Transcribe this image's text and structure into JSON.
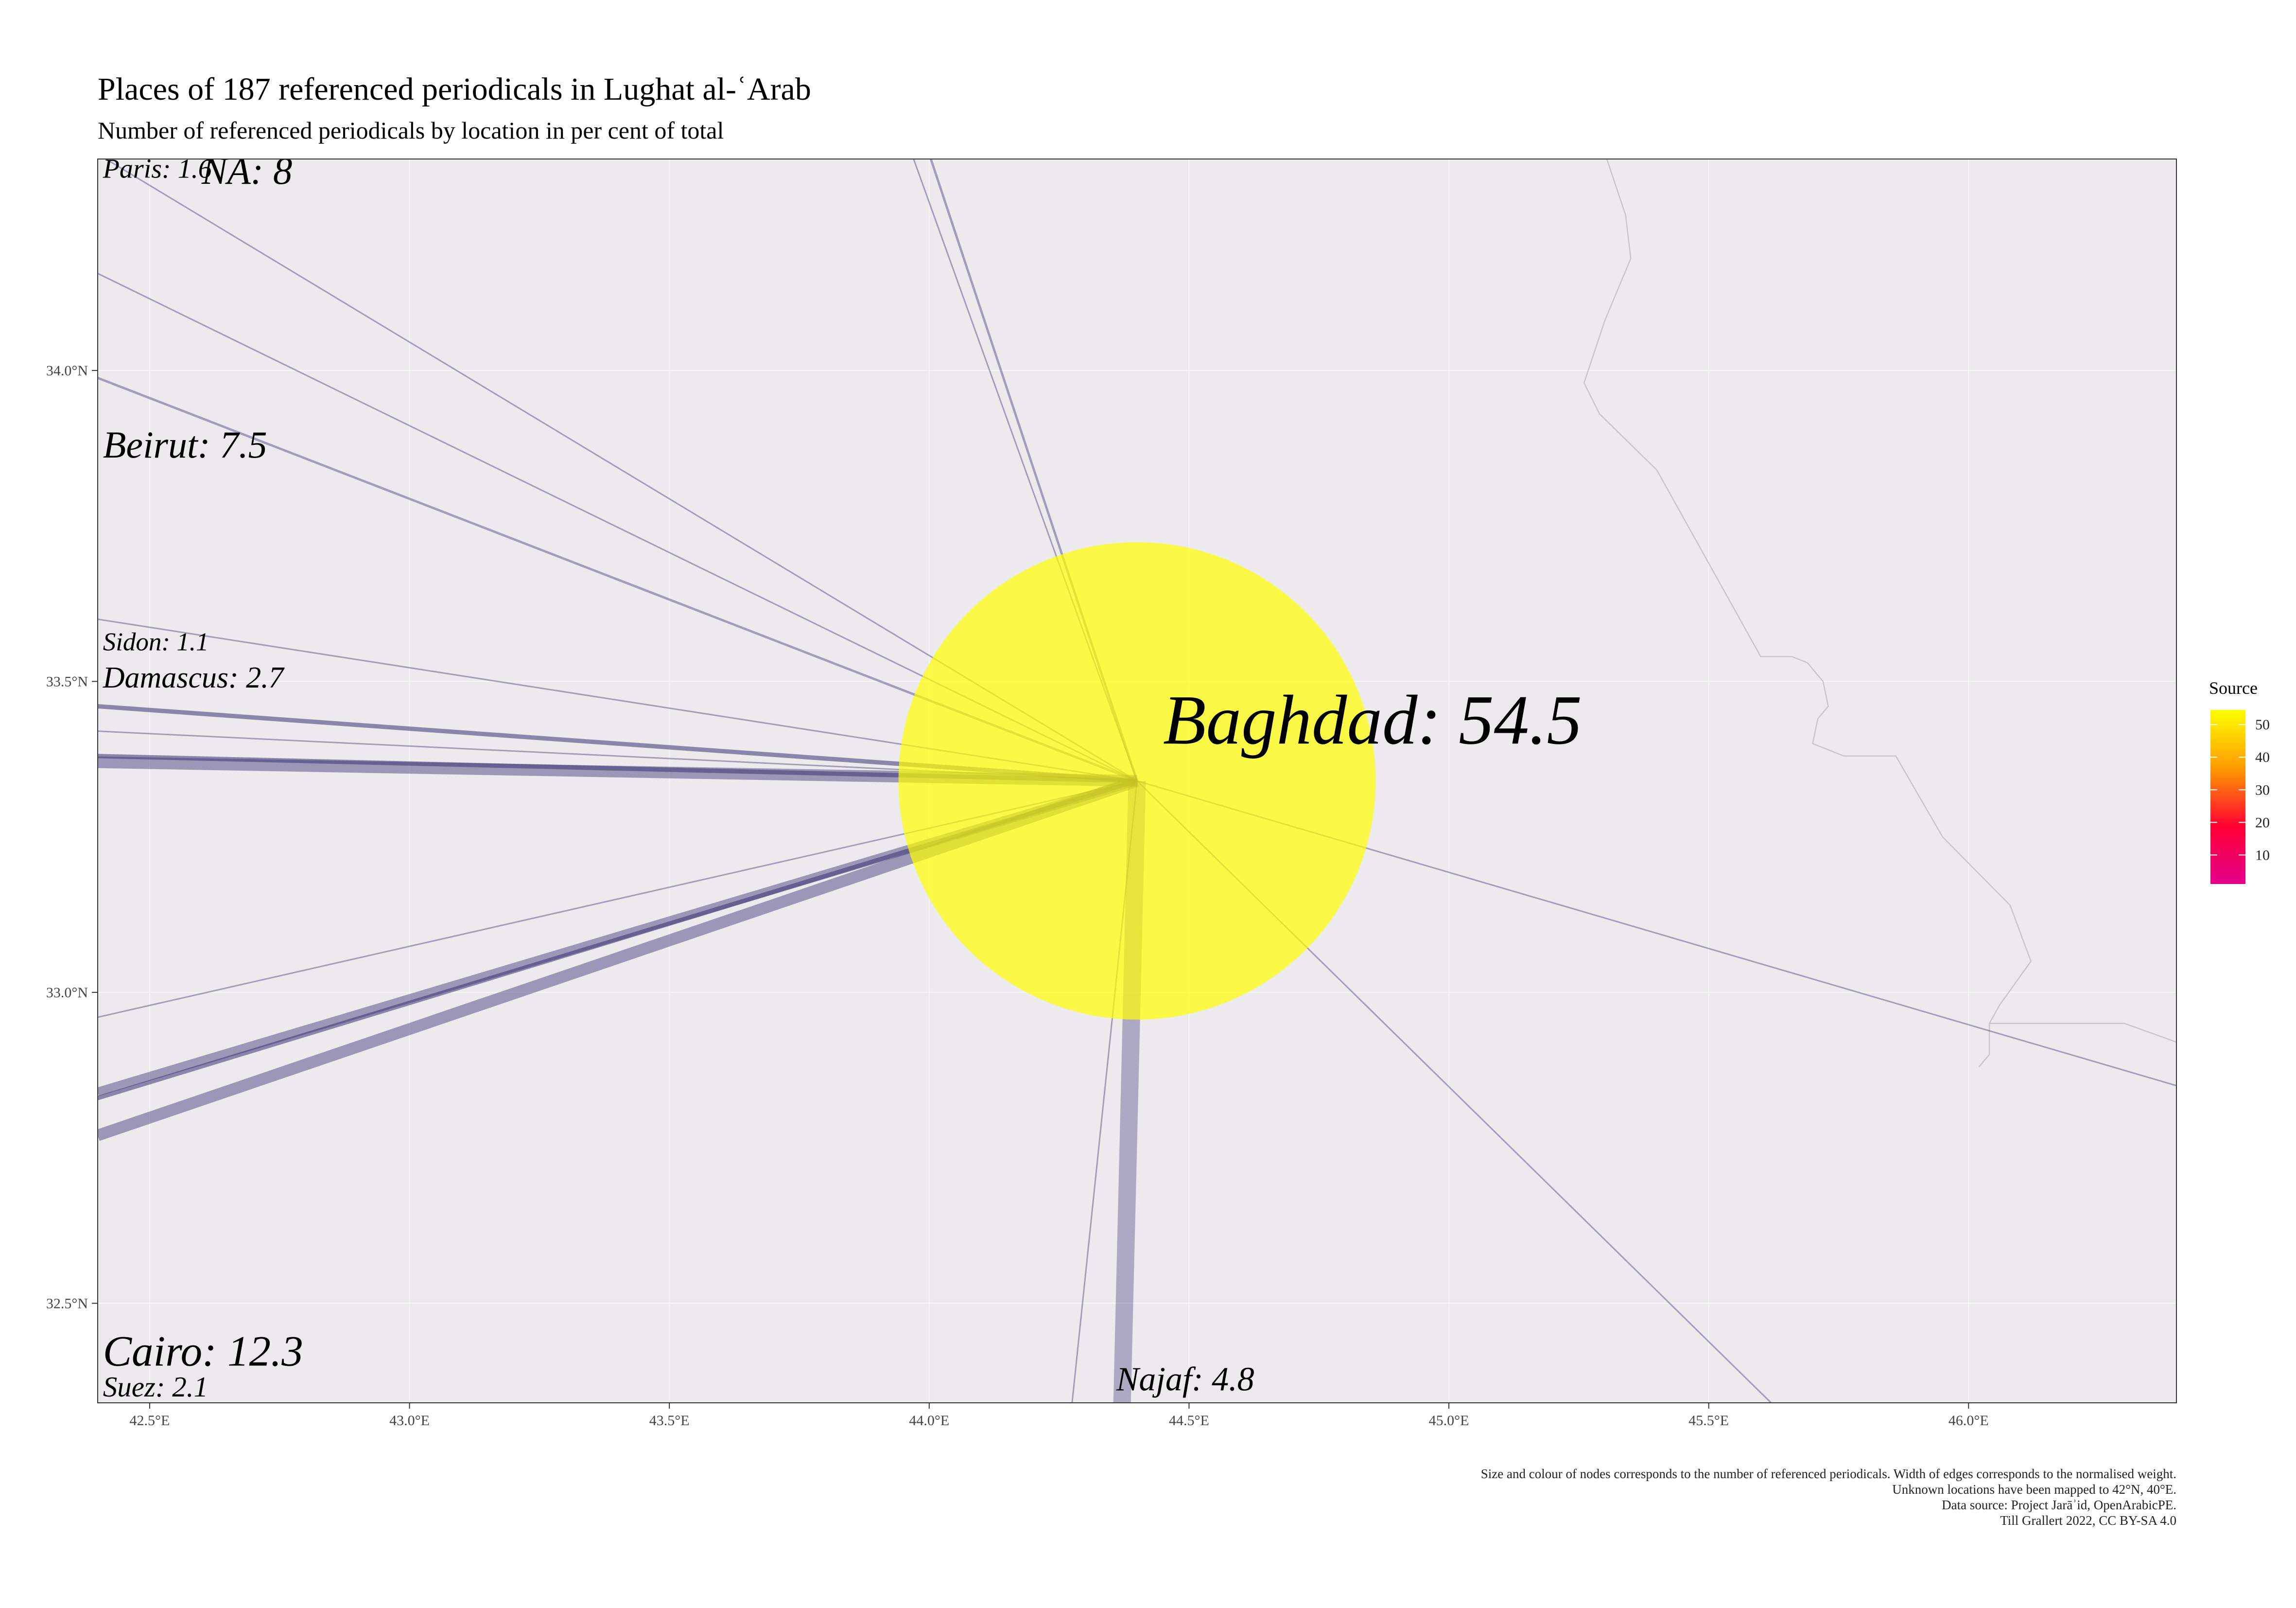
{
  "title": "Places of 187 referenced periodicals in Lughat al-ʿArab",
  "subtitle": "Number of referenced periodicals by location in per cent of total",
  "caption": [
    "Size and colour of nodes corresponds to the number of referenced periodicals. Width of edges corresponds to the normalised weight.",
    "Unknown locations have been mapped to 42°N, 40°E.",
    "Data source: Project Jarāʾid, OpenArabicPE.",
    "Till Grallert 2022, CC BY-SA 4.0"
  ],
  "colors": {
    "panel_bg": "#ECEAEC",
    "grid": "#F6F5F6",
    "edge": "#3B3275",
    "node_max": "#FFFF00",
    "legend_gradient": [
      "#FFFF00",
      "#FF9900",
      "#FF0033",
      "#E3008C"
    ],
    "border": "#C9C6C9"
  },
  "map": {
    "xlim": [
      42.4,
      46.4
    ],
    "ylim": [
      32.34,
      34.34
    ],
    "x_ticks": [
      {
        "value": 42.5,
        "label": "42.5°E"
      },
      {
        "value": 43.0,
        "label": "43.0°E"
      },
      {
        "value": 43.5,
        "label": "43.5°E"
      },
      {
        "value": 44.0,
        "label": "44.0°E"
      },
      {
        "value": 44.5,
        "label": "44.5°E"
      },
      {
        "value": 45.0,
        "label": "45.0°E"
      },
      {
        "value": 45.5,
        "label": "45.5°E"
      },
      {
        "value": 46.0,
        "label": "46.0°E"
      }
    ],
    "y_ticks": [
      {
        "value": 32.5,
        "label": "32.5°N"
      },
      {
        "value": 33.0,
        "label": "33.0°N"
      },
      {
        "value": 33.5,
        "label": "33.5°N"
      },
      {
        "value": 34.0,
        "label": "34.0°N"
      }
    ],
    "hub": {
      "name": "Baghdad",
      "label": "Baghdad: 54.5",
      "lon": 44.4,
      "lat": 33.34,
      "value": 54.5
    },
    "place_labels": [
      {
        "label": "Baghdad: 54.5",
        "lon": 44.45,
        "lat": 33.4,
        "value": 54.5
      },
      {
        "label": "NA: 8",
        "lon": 42.6,
        "lat": 34.3,
        "value": 8
      },
      {
        "label": "Paris: 1.6",
        "lon": 42.41,
        "lat": 34.31,
        "value": 1.6
      },
      {
        "label": "Beirut: 7.5",
        "lon": 42.41,
        "lat": 33.86,
        "value": 7.5
      },
      {
        "label": "Sidon: 1.1",
        "lon": 42.41,
        "lat": 33.55,
        "value": 1.1
      },
      {
        "label": "Damascus: 2.7",
        "lon": 42.41,
        "lat": 33.49,
        "value": 2.7
      },
      {
        "label": "Cairo: 12.3",
        "lon": 42.41,
        "lat": 32.4,
        "value": 12.3
      },
      {
        "label": "Suez: 2.1",
        "lon": 42.41,
        "lat": 32.35,
        "value": 2.1
      },
      {
        "label": "Najaf: 4.8",
        "lon": 44.36,
        "lat": 32.36,
        "value": 4.8
      }
    ],
    "edges": [
      {
        "to_lon": 41.9,
        "to_lat": 34.6,
        "weight": 1
      },
      {
        "to_lon": 41.9,
        "to_lat": 34.36,
        "weight": 1
      },
      {
        "to_lon": 41.9,
        "to_lat": 34.15,
        "weight": 1.6
      },
      {
        "to_lon": 42.4,
        "to_lat": 33.6,
        "weight": 1
      },
      {
        "to_lon": 42.4,
        "to_lat": 33.46,
        "weight": 3
      },
      {
        "to_lon": 42.4,
        "to_lat": 33.42,
        "weight": 1
      },
      {
        "to_lon": 42.4,
        "to_lat": 33.38,
        "weight": 3
      },
      {
        "to_lon": 42.4,
        "to_lat": 33.37,
        "weight": 8
      },
      {
        "to_lon": 42.4,
        "to_lat": 32.96,
        "weight": 1
      },
      {
        "to_lon": 42.4,
        "to_lat": 32.84,
        "weight": 6
      },
      {
        "to_lon": 42.4,
        "to_lat": 32.83,
        "weight": 3
      },
      {
        "to_lon": 42.4,
        "to_lat": 32.77,
        "weight": 8
      },
      {
        "to_lon": 43.9,
        "to_lat": 34.6,
        "weight": 1.6
      },
      {
        "to_lon": 43.97,
        "to_lat": 34.34,
        "weight": 1
      },
      {
        "to_lon": 44.27,
        "to_lat": 32.3,
        "weight": 1
      },
      {
        "to_lon": 44.37,
        "to_lat": 32.3,
        "weight": 12
      },
      {
        "to_lon": 45.62,
        "to_lat": 32.34,
        "weight": 1
      },
      {
        "to_lon": 46.4,
        "to_lat": 32.85,
        "weight": 1
      }
    ],
    "border_path": [
      [
        45.3,
        34.35
      ],
      [
        45.34,
        34.25
      ],
      [
        45.35,
        34.18
      ],
      [
        45.3,
        34.08
      ],
      [
        45.26,
        33.98
      ],
      [
        45.29,
        33.93
      ],
      [
        45.4,
        33.84
      ],
      [
        45.6,
        33.54
      ],
      [
        45.66,
        33.54
      ],
      [
        45.69,
        33.53
      ],
      [
        45.72,
        33.5
      ],
      [
        45.73,
        33.46
      ],
      [
        45.71,
        33.44
      ],
      [
        45.7,
        33.4
      ],
      [
        45.76,
        33.38
      ],
      [
        45.86,
        33.38
      ],
      [
        45.95,
        33.25
      ],
      [
        46.08,
        33.14
      ],
      [
        46.12,
        33.05
      ],
      [
        46.06,
        32.98
      ],
      [
        46.04,
        32.95
      ],
      [
        46.04,
        32.9
      ],
      [
        46.02,
        32.88
      ]
    ],
    "border_path_b": [
      [
        46.04,
        32.95
      ],
      [
        46.3,
        32.95
      ],
      [
        46.4,
        32.92
      ]
    ]
  },
  "legend": {
    "title": "Source",
    "min": 1.1,
    "max": 54.5,
    "ticks": [
      {
        "value": 10,
        "label": "10"
      },
      {
        "value": 20,
        "label": "20"
      },
      {
        "value": 30,
        "label": "30"
      },
      {
        "value": 40,
        "label": "40"
      },
      {
        "value": 50,
        "label": "50"
      }
    ]
  }
}
